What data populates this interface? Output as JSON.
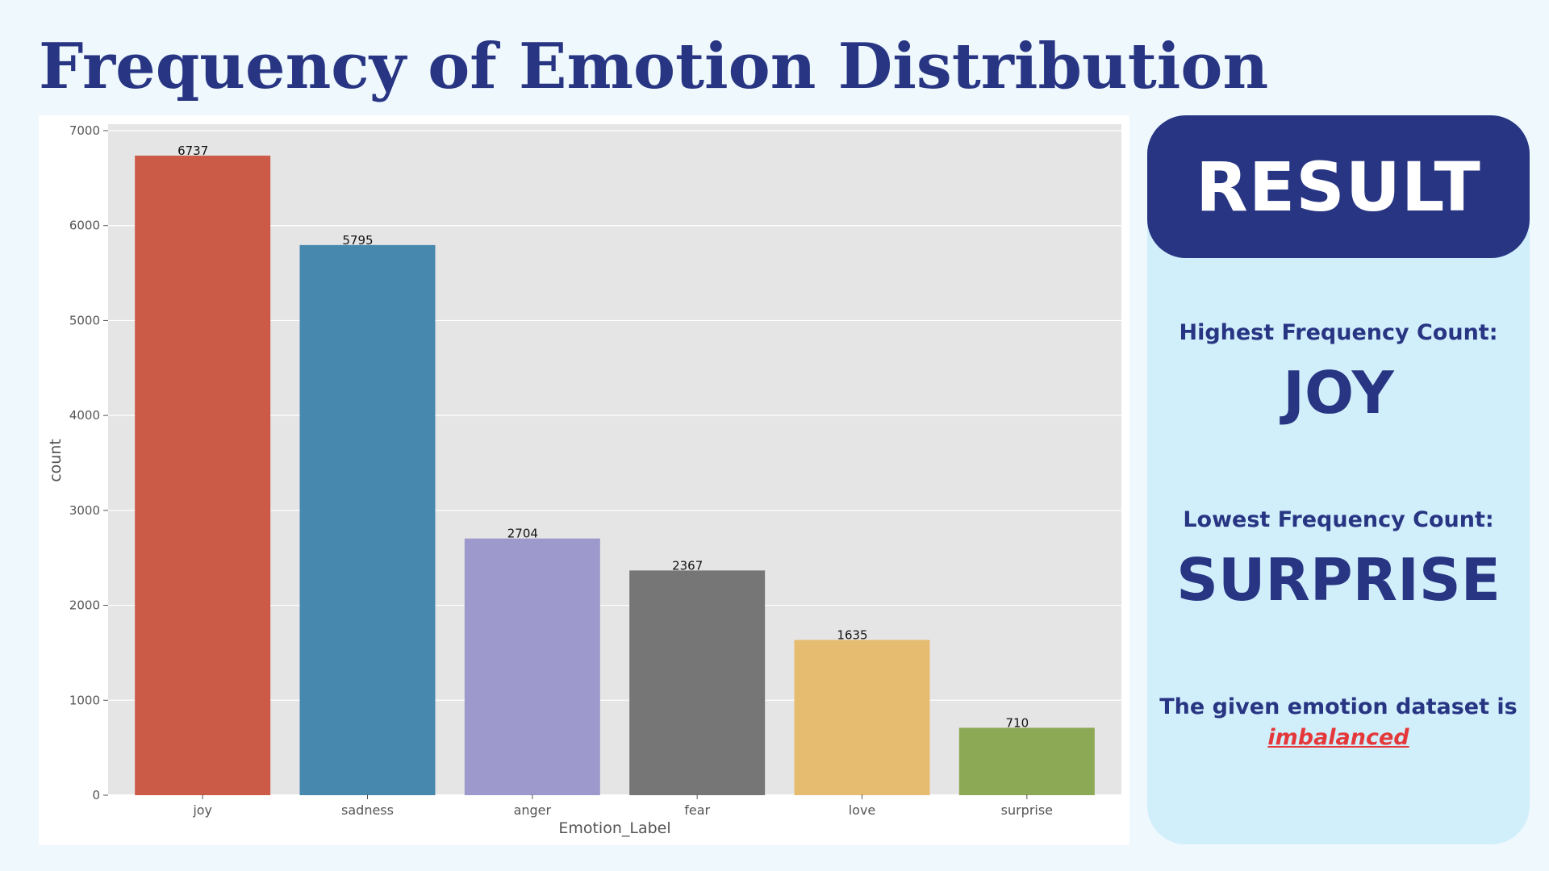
{
  "page": {
    "title": "Frequency of Emotion Distribution"
  },
  "chart_data": {
    "type": "bar",
    "categories": [
      "joy",
      "sadness",
      "anger",
      "fear",
      "love",
      "surprise"
    ],
    "values": [
      6737,
      5795,
      2704,
      2367,
      1635,
      710
    ],
    "data_labels": [
      "6737",
      "5795",
      "2704",
      "2367",
      "1635",
      "710"
    ],
    "colors": [
      "#cb5a47",
      "#4788af",
      "#9e99cc",
      "#767676",
      "#e6bd70",
      "#8ca955"
    ],
    "xlabel": "Emotion_Label",
    "ylabel": "count",
    "ylim": [
      0,
      7000
    ],
    "yticks": [
      0,
      1000,
      2000,
      3000,
      4000,
      5000,
      6000,
      7000
    ],
    "grid": true,
    "style": "ggplot",
    "plot_background": "#e5e5e5"
  },
  "result": {
    "title": "RESULT",
    "highest_label": "Highest Frequency Count:",
    "highest_value": "JOY",
    "lowest_label": "Lowest Frequency Count:",
    "lowest_value": "SURPRISE",
    "conclusion_prefix": "The given emotion dataset is",
    "conclusion_highlight": "imbalanced"
  },
  "colors": {
    "accent": "#283583",
    "background": "#eef8fd",
    "result_panel": "#d1effb",
    "highlight": "#e5383b"
  }
}
